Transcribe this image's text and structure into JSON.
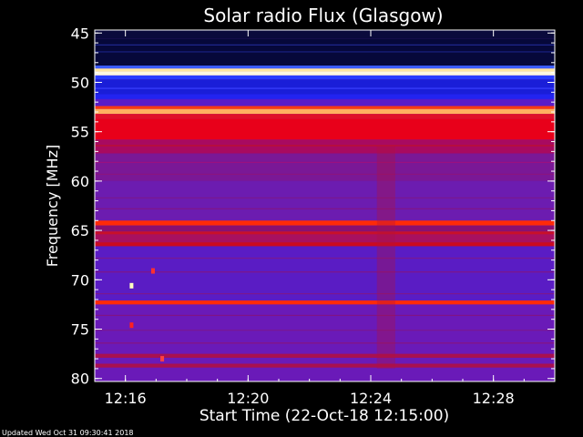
{
  "chart_data": {
    "type": "heatmap",
    "title": "Solar radio Flux (Glasgow)",
    "xlabel": "Start Time (22-Oct-18 12:15:00)",
    "ylabel": "Frequency [MHz]",
    "footer": "Updated Wed Oct 31 09:30:41 2018",
    "x_ticks": [
      "12:16",
      "12:20",
      "12:24",
      "12:28"
    ],
    "x_tick_minutes": [
      1,
      5,
      9,
      13
    ],
    "xlim_minutes": [
      0.0,
      15.0
    ],
    "y_ticks": [
      "45",
      "50",
      "55",
      "60",
      "65",
      "70",
      "75",
      "80"
    ],
    "y_tick_values": [
      45,
      50,
      55,
      60,
      65,
      70,
      75,
      80
    ],
    "ylim": [
      44.7,
      80.3
    ],
    "y_inverted": true,
    "background_color": "#6a1fb8",
    "bands": [
      {
        "f0": 44.7,
        "f1": 45.6,
        "color": "#0a0a3c"
      },
      {
        "f0": 45.6,
        "f1": 48.3,
        "color": "#06083a"
      },
      {
        "f0": 48.3,
        "f1": 48.6,
        "color": "#3a5cff"
      },
      {
        "f0": 48.6,
        "f1": 48.9,
        "color": "#ffe6a0"
      },
      {
        "f0": 48.9,
        "f1": 49.3,
        "color": "#fff8e0"
      },
      {
        "f0": 49.3,
        "f1": 49.7,
        "color": "#2a3cff"
      },
      {
        "f0": 49.7,
        "f1": 51.2,
        "color": "#1a1ed8"
      },
      {
        "f0": 51.2,
        "f1": 51.7,
        "color": "#2224f0"
      },
      {
        "f0": 51.7,
        "f1": 52.4,
        "color": "#5a1cc8"
      },
      {
        "f0": 52.4,
        "f1": 52.7,
        "color": "#ff3a10"
      },
      {
        "f0": 52.7,
        "f1": 53.2,
        "color": "#ffb060"
      },
      {
        "f0": 53.2,
        "f1": 53.7,
        "color": "#e01028"
      },
      {
        "f0": 53.7,
        "f1": 55.8,
        "color": "#e8001a"
      },
      {
        "f0": 55.8,
        "f1": 57.2,
        "color": "#a80a60"
      },
      {
        "f0": 57.2,
        "f1": 60.0,
        "color": "#7a1896"
      },
      {
        "f0": 60.0,
        "f1": 64.0,
        "color": "#6c1cb0"
      },
      {
        "f0": 64.0,
        "f1": 64.5,
        "color": "#ff2a08"
      },
      {
        "f0": 64.5,
        "f1": 65.1,
        "color": "#8a1070"
      },
      {
        "f0": 65.1,
        "f1": 65.4,
        "color": "#c8102a"
      },
      {
        "f0": 65.4,
        "f1": 66.2,
        "color": "#a81060"
      },
      {
        "f0": 66.2,
        "f1": 66.6,
        "color": "#cc0a20"
      },
      {
        "f0": 66.6,
        "f1": 72.1,
        "color": "#5a1cc4"
      },
      {
        "f0": 72.1,
        "f1": 72.5,
        "color": "#ff2a08"
      },
      {
        "f0": 72.5,
        "f1": 77.5,
        "color": "#6a1ab8"
      },
      {
        "f0": 77.5,
        "f1": 77.9,
        "color": "#a81050"
      },
      {
        "f0": 77.9,
        "f1": 78.5,
        "color": "#6a1ab8"
      },
      {
        "f0": 78.5,
        "f1": 78.9,
        "color": "#a81050"
      },
      {
        "f0": 78.9,
        "f1": 80.3,
        "color": "#6a1ab8"
      }
    ],
    "thin_lines": [
      {
        "f": 46.2,
        "color": "#202890"
      },
      {
        "f": 46.9,
        "color": "#1a2080"
      },
      {
        "f": 50.6,
        "color": "#3a40ff"
      },
      {
        "f": 56.4,
        "color": "#c0102a"
      },
      {
        "f": 58.1,
        "color": "#9a1080"
      },
      {
        "f": 59.3,
        "color": "#8a1480"
      },
      {
        "f": 61.7,
        "color": "#7a1890"
      },
      {
        "f": 62.8,
        "color": "#801688"
      },
      {
        "f": 67.8,
        "color": "#7a1890"
      },
      {
        "f": 69.2,
        "color": "#7e1688"
      },
      {
        "f": 71.4,
        "color": "#7a1890"
      },
      {
        "f": 73.6,
        "color": "#801486"
      },
      {
        "f": 75.1,
        "color": "#7a1890"
      },
      {
        "f": 76.4,
        "color": "#861480"
      }
    ],
    "burst_column": {
      "t0": 9.2,
      "t1": 9.8,
      "f0": 56.5,
      "f1": 79.0,
      "color": "#b01040"
    },
    "spots": [
      {
        "t": 1.2,
        "f": 70.6,
        "color": "#ffffc0"
      },
      {
        "t": 1.2,
        "f": 74.6,
        "color": "#ff2020"
      },
      {
        "t": 1.9,
        "f": 69.1,
        "color": "#ff3030"
      },
      {
        "t": 2.2,
        "f": 78.0,
        "color": "#ff4040"
      }
    ]
  }
}
